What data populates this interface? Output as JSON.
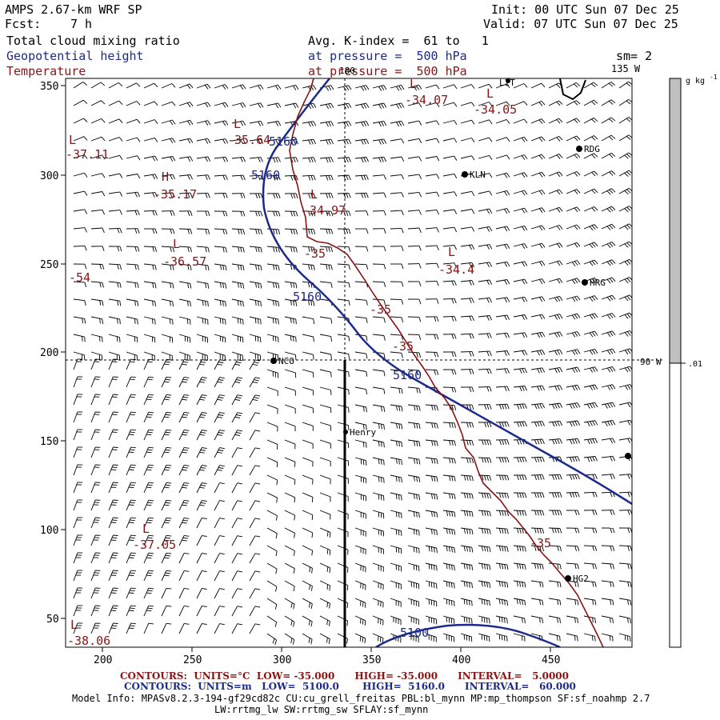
{
  "header": {
    "model": "AMPS 2.67-km WRF SP",
    "fcst_label": "Fcst:",
    "fcst_value": "7 h",
    "init": "Init: 00 UTC Sun 07 Dec 25",
    "valid": "Valid: 07 UTC Sun 07 Dec 25",
    "field1": "Total cloud mixing ratio",
    "field2": "Geopotential height",
    "field3": "Temperature",
    "avg": "Avg. K-index =  61 to   1",
    "pressure1": "at pressure =  500 hPa",
    "pressure2": "at pressure =  500 hPa",
    "sm": "sm= 2",
    "lon_135": "135 W",
    "lon_180": "180",
    "lon_90": "90 W"
  },
  "axes": {
    "x_ticks": [
      "200",
      "250",
      "300",
      "350",
      "400",
      "450"
    ],
    "y_ticks": [
      "350",
      "300",
      "250",
      "200",
      "150",
      "100",
      "50"
    ]
  },
  "colorbar": {
    "unit": "g kg",
    "unit_exp": "-1",
    "value": ".01",
    "fill_color": "#c0c0c0"
  },
  "stations": [
    {
      "name": "RDG"
    },
    {
      "name": "KLN"
    },
    {
      "name": "HRG"
    },
    {
      "name": "NCO"
    },
    {
      "name": "Henry"
    },
    {
      "name": "HG2"
    },
    {
      "name": "LIT"
    }
  ],
  "height_labels": [
    "5160",
    "5160",
    "5160",
    "5160",
    "5100"
  ],
  "temp_labels": [
    "-35",
    "-35",
    "-35",
    "-35"
  ],
  "extrema": [
    {
      "type": "L",
      "value": "-34.07"
    },
    {
      "type": "L",
      "value": "-34.05"
    },
    {
      "type": "L",
      "value": "-35.64"
    },
    {
      "type": "L",
      "value": "-37.11"
    },
    {
      "type": "H",
      "value": "-35.17"
    },
    {
      "type": "L",
      "value": "-34.97"
    },
    {
      "type": "L",
      "value": "-36.57"
    },
    {
      "type": "L",
      "value": "-34.4"
    },
    {
      "type": "",
      "value": "-54"
    },
    {
      "type": "L",
      "value": "-37.05"
    },
    {
      "type": "L",
      "value": "-38.06"
    }
  ],
  "footer": {
    "line1": "CONTOURS:  UNITS=°C  LOW= -35.000      HIGH= -35.000      INTERVAL=   5.0000",
    "line2": "CONTOURS:  UNITS=m   LOW=  5100.0       HIGH=  5160.0      INTERVAL=   60.000",
    "line3": "Model Info: MPASv8.2.3-194-gf29cd82c CU:cu_grell_freitas PBL:bl_mynn MP:mp_thompson SF:sf_noahmp 2.7",
    "line4": "LW:rrtmg_lw SW:rrtmg_sw SFLAY:sf_mynn"
  },
  "colors": {
    "height_contour": "#1c2a8c",
    "temp_contour": "#8a1414",
    "wind_barb": "#000000"
  }
}
